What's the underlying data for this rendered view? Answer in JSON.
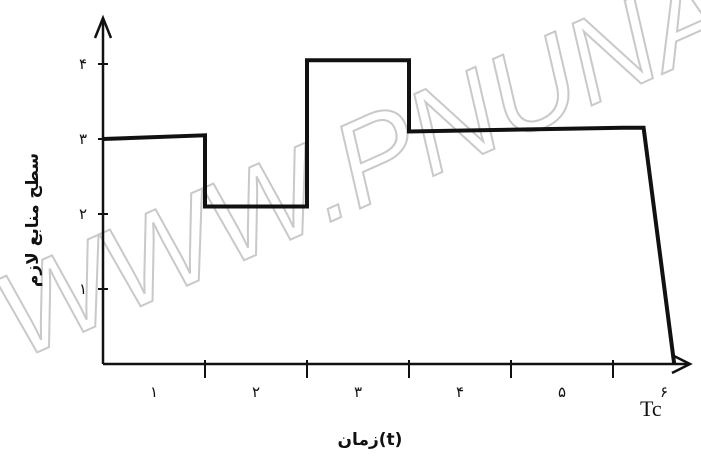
{
  "chart_data": {
    "type": "line",
    "xlabel": "زمان(t)",
    "ylabel": "سطح منابع لازم",
    "x_end_label": "Tc",
    "x_tick_labels": [
      "۱",
      "۲",
      "۳",
      "۴",
      "۵",
      "۶"
    ],
    "y_tick_labels": [
      "۱",
      "۲",
      "۳",
      "۴"
    ],
    "xlim": [
      0,
      6.5
    ],
    "ylim": [
      0,
      4
    ],
    "watermark": "WWW.PNUNA.C",
    "series": [
      {
        "points": [
          [
            0,
            3
          ],
          [
            1,
            3.05
          ],
          [
            1,
            2.1
          ],
          [
            2,
            2.1
          ],
          [
            2,
            4.05
          ],
          [
            3,
            4.05
          ],
          [
            3,
            3.1
          ],
          [
            5.1,
            3.15
          ],
          [
            5.3,
            3.15
          ],
          [
            5.6,
            0
          ]
        ]
      }
    ],
    "colors": {
      "line": "#111111",
      "watermark": "#c9c9c9"
    }
  }
}
